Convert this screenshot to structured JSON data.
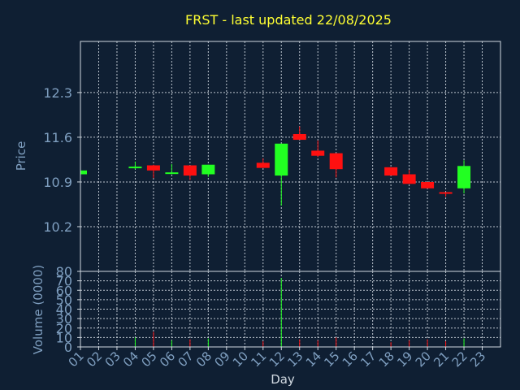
{
  "chart_data": {
    "type": "candlestick",
    "title": "FRST - last updated 22/08/2025",
    "xlabel": "Day",
    "ylabel": "Price",
    "volume_label": "Volume (0000)",
    "x_ticks": [
      "01",
      "02",
      "03",
      "04",
      "05",
      "06",
      "07",
      "08",
      "09",
      "10",
      "11",
      "12",
      "13",
      "14",
      "15",
      "16",
      "17",
      "18",
      "19",
      "20",
      "21",
      "22",
      "23"
    ],
    "price_ticks": [
      10.2,
      10.9,
      11.6,
      12.3
    ],
    "price_ylim": [
      9.5,
      13.1
    ],
    "volume_ticks": [
      0,
      10,
      20,
      30,
      40,
      50,
      60,
      70,
      80
    ],
    "volume_ylim": [
      0,
      80
    ],
    "grid": true,
    "colors": {
      "background": "#0f1f33",
      "axes": "#d0d8e0",
      "title": "#ffff33",
      "label": "#7f9fc0",
      "up": "#22ff22",
      "down": "#ff1010"
    },
    "candles": [
      {
        "day": 1,
        "open": 11.02,
        "close": 11.08,
        "high": 11.08,
        "low": 11.02
      },
      {
        "day": 4,
        "open": 11.12,
        "close": 11.14,
        "high": 11.22,
        "low": 11.1
      },
      {
        "day": 5,
        "open": 11.16,
        "close": 11.08,
        "high": 11.17,
        "low": 10.96
      },
      {
        "day": 6,
        "open": 11.03,
        "close": 11.05,
        "high": 11.18,
        "low": 11.02
      },
      {
        "day": 7,
        "open": 11.16,
        "close": 11.0,
        "high": 11.16,
        "low": 10.93
      },
      {
        "day": 8,
        "open": 11.02,
        "close": 11.17,
        "high": 11.17,
        "low": 10.98
      },
      {
        "day": 11,
        "open": 11.2,
        "close": 11.12,
        "high": 11.27,
        "low": 11.12
      },
      {
        "day": 12,
        "open": 11.0,
        "close": 11.5,
        "high": 11.5,
        "low": 10.53
      },
      {
        "day": 13,
        "open": 11.65,
        "close": 11.56,
        "high": 11.77,
        "low": 11.56
      },
      {
        "day": 14,
        "open": 11.39,
        "close": 11.31,
        "high": 11.55,
        "low": 11.29
      },
      {
        "day": 15,
        "open": 11.35,
        "close": 11.1,
        "high": 11.35,
        "low": 10.97
      },
      {
        "day": 18,
        "open": 11.13,
        "close": 11.0,
        "high": 11.13,
        "low": 11.0
      },
      {
        "day": 19,
        "open": 11.02,
        "close": 10.87,
        "high": 11.09,
        "low": 10.87
      },
      {
        "day": 20,
        "open": 10.9,
        "close": 10.8,
        "high": 10.9,
        "low": 10.8
      },
      {
        "day": 21,
        "open": 10.74,
        "close": 10.72,
        "high": 10.74,
        "low": 10.67
      },
      {
        "day": 22,
        "open": 10.8,
        "close": 11.15,
        "high": 11.24,
        "low": 10.72
      }
    ],
    "volume": [
      {
        "day": 1,
        "value": 0.3,
        "dir": "up"
      },
      {
        "day": 4,
        "value": 10,
        "dir": "up"
      },
      {
        "day": 5,
        "value": 16,
        "dir": "down"
      },
      {
        "day": 6,
        "value": 7,
        "dir": "up"
      },
      {
        "day": 7,
        "value": 8,
        "dir": "down"
      },
      {
        "day": 8,
        "value": 9,
        "dir": "up"
      },
      {
        "day": 11,
        "value": 6,
        "dir": "down"
      },
      {
        "day": 12,
        "value": 73,
        "dir": "up"
      },
      {
        "day": 13,
        "value": 8,
        "dir": "down"
      },
      {
        "day": 14,
        "value": 7,
        "dir": "down"
      },
      {
        "day": 15,
        "value": 10,
        "dir": "down"
      },
      {
        "day": 18,
        "value": 5,
        "dir": "down"
      },
      {
        "day": 19,
        "value": 7,
        "dir": "down"
      },
      {
        "day": 20,
        "value": 8,
        "dir": "down"
      },
      {
        "day": 21,
        "value": 6,
        "dir": "down"
      },
      {
        "day": 22,
        "value": 9,
        "dir": "up"
      }
    ]
  }
}
